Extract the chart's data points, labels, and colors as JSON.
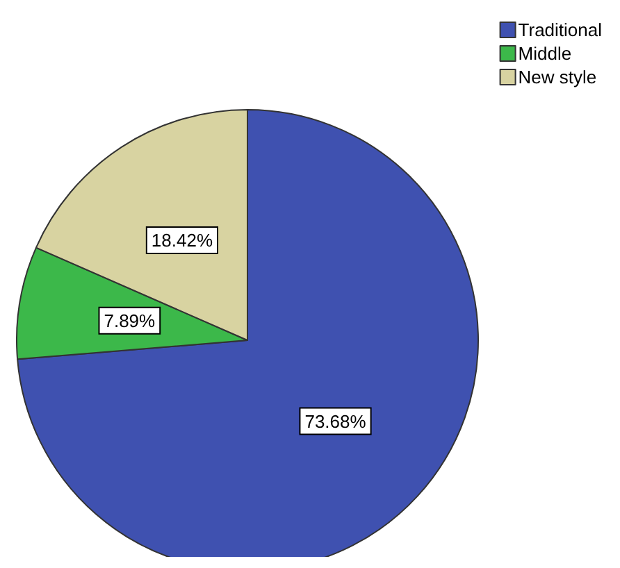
{
  "chart_data": {
    "type": "pie",
    "categories": [
      "Traditional",
      "Middle",
      "New style"
    ],
    "values": [
      73.68,
      7.89,
      18.42
    ],
    "colors": [
      "#3f51b0",
      "#3cb84a",
      "#d8d3a1"
    ],
    "value_labels": [
      "73.68%",
      "7.89%",
      "18.42%"
    ],
    "legend": "top right"
  }
}
